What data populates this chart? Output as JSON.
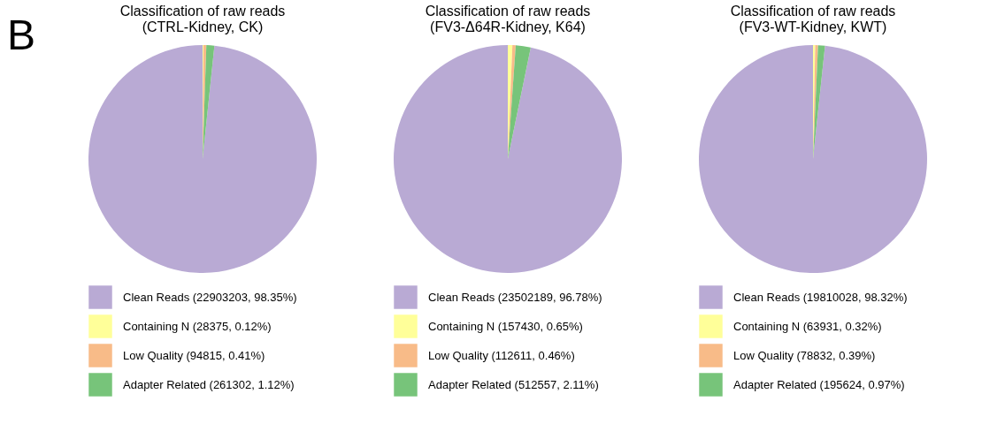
{
  "chart_data": [
    {
      "type": "pie",
      "title": "Classification of raw reads\n(CTRL-Kidney, CK)",
      "annotations": [
        "B"
      ],
      "legend": "bottom",
      "categories": [
        "Clean Reads (22903203, 98.35%)",
        "Containing N (28375, 0.12%)",
        "Low Quality (94815, 0.41%)",
        "Adapter Related (261302, 1.12%)"
      ],
      "values": [
        22903203,
        28375,
        94815,
        261302
      ],
      "colors": [
        "#b9aad4",
        "#ffff99",
        "#f8bb88",
        "#77c47a"
      ]
    },
    {
      "type": "pie",
      "title": "Classification of raw reads\n(FV3-Δ64R-Kidney, K64)",
      "legend": "bottom",
      "categories": [
        "Clean Reads (23502189, 96.78%)",
        "Containing N (157430, 0.65%)",
        "Low Quality (112611, 0.46%)",
        "Adapter Related (512557, 2.11%)"
      ],
      "values": [
        23502189,
        157430,
        112611,
        512557
      ],
      "colors": [
        "#b9aad4",
        "#ffff99",
        "#f8bb88",
        "#77c47a"
      ]
    },
    {
      "type": "pie",
      "title": "Classification of raw reads\n(FV3-WT-Kidney, KWT)",
      "legend": "bottom",
      "categories": [
        "Clean Reads (19810028, 98.32%)",
        "Containing N (63931, 0.32%)",
        "Low Quality (78832, 0.39%)",
        "Adapter Related (195624, 0.97%)"
      ],
      "values": [
        19810028,
        63931,
        78832,
        195624
      ],
      "colors": [
        "#b9aad4",
        "#ffff99",
        "#f8bb88",
        "#77c47a"
      ]
    }
  ]
}
